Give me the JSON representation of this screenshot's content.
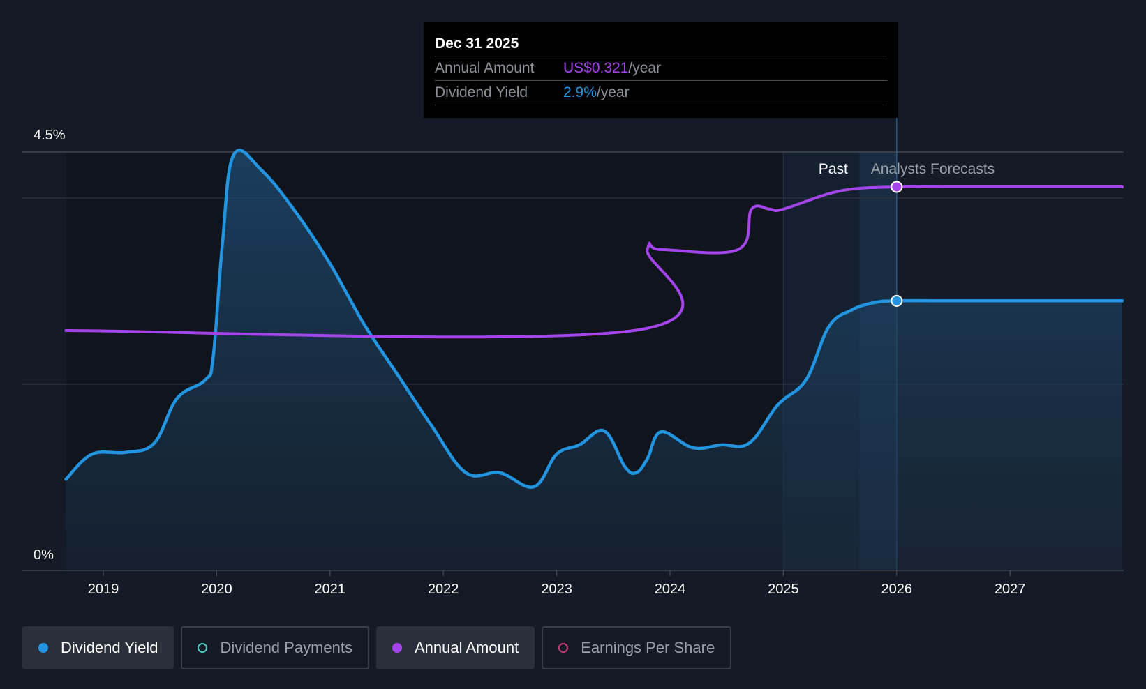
{
  "colors": {
    "background": "#151b26",
    "yield": "#2394e0",
    "annual": "#a445ea",
    "payments": "#4ecdc4",
    "eps": "#c2407a",
    "grid": "#3a404a",
    "axis_text": "#ffffff"
  },
  "tooltip": {
    "date": "Dec 31 2025",
    "rows": [
      {
        "label": "Annual Amount",
        "value": "US$0.321",
        "unit": "/year"
      },
      {
        "label": "Dividend Yield",
        "value": "2.9%",
        "unit": "/year"
      }
    ]
  },
  "regions": {
    "past_label": "Past",
    "forecast_label": "Analysts Forecasts"
  },
  "legend": [
    {
      "label": "Dividend Yield",
      "color": "#2394e0",
      "active": true
    },
    {
      "label": "Dividend Payments",
      "color": "#4ecdc4",
      "active": false
    },
    {
      "label": "Annual Amount",
      "color": "#a445ea",
      "active": true
    },
    {
      "label": "Earnings Per Share",
      "color": "#c2407a",
      "active": false
    }
  ],
  "chart_data": {
    "type": "line",
    "title": "",
    "xlabel": "",
    "ylabel": "",
    "xlim": [
      2018.29,
      2028.0
    ],
    "ylim": [
      0,
      4.5
    ],
    "y_tick_labels": [
      {
        "value": 4.5,
        "label": "4.5%"
      },
      {
        "value": 0,
        "label": "0%"
      }
    ],
    "x_ticks": [
      2019,
      2020,
      2021,
      2022,
      2023,
      2024,
      2025,
      2026,
      2027
    ],
    "x_tick_labels": [
      "2019",
      "2020",
      "2021",
      "2022",
      "2023",
      "2024",
      "2025",
      "2026",
      "2027"
    ],
    "past_forecast_boundary": 2025.0,
    "forecast_fill_start": 2025.67,
    "highlight_x": 2026.0,
    "series": [
      {
        "name": "Dividend Yield",
        "unit": "%",
        "color": "#2394e0",
        "filled": true,
        "x": [
          2018.67,
          2018.9,
          2019.2,
          2019.45,
          2019.65,
          2019.9,
          2019.97,
          2020.05,
          2020.15,
          2020.4,
          2020.7,
          2021.0,
          2021.3,
          2021.6,
          2021.9,
          2022.2,
          2022.5,
          2022.8,
          2023.0,
          2023.2,
          2023.42,
          2023.6,
          2023.7,
          2023.8,
          2023.92,
          2024.2,
          2024.45,
          2024.7,
          2024.95,
          2025.2,
          2025.4,
          2025.6,
          2025.8,
          2026.0,
          2026.5,
          2027.0,
          2027.5,
          2027.99
        ],
        "values": [
          0.98,
          1.25,
          1.27,
          1.37,
          1.85,
          2.05,
          2.3,
          3.5,
          4.47,
          4.3,
          3.85,
          3.3,
          2.65,
          2.1,
          1.55,
          1.05,
          1.05,
          0.9,
          1.25,
          1.35,
          1.5,
          1.12,
          1.05,
          1.2,
          1.49,
          1.32,
          1.35,
          1.37,
          1.78,
          2.05,
          2.62,
          2.8,
          2.88,
          2.9,
          2.9,
          2.9,
          2.9,
          2.9
        ]
      },
      {
        "name": "Annual Amount",
        "unit": "US$",
        "color": "#a445ea",
        "filled": false,
        "x": [
          2018.67,
          2023.68,
          2023.8,
          2023.92,
          2024.6,
          2024.72,
          2024.88,
          2025.0,
          2025.5,
          2026.0,
          2026.5,
          2027.0,
          2027.99
        ],
        "values": [
          0.25,
          0.25,
          0.29,
          0.29,
          0.29,
          0.31,
          0.31,
          0.31,
          0.319,
          0.321,
          0.321,
          0.321,
          0.321
        ]
      }
    ],
    "highlight_values": {
      "Dividend Yield": 2.9,
      "Annual Amount": 0.321
    }
  }
}
